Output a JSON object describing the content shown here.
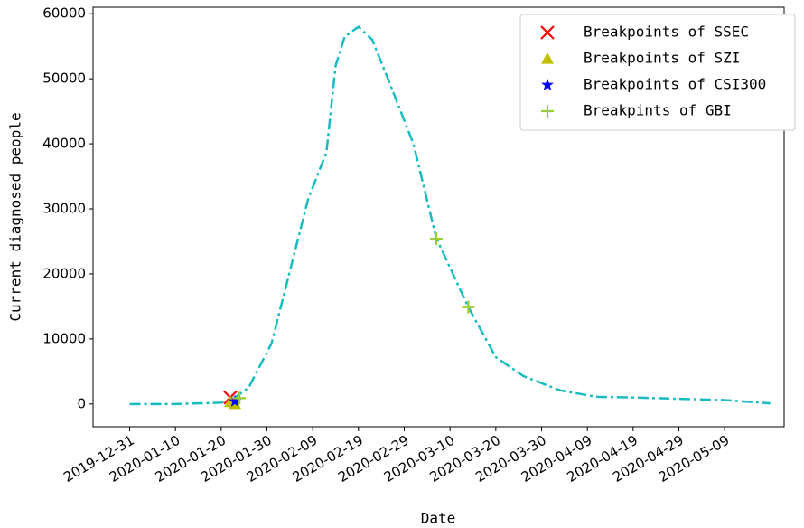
{
  "chart_data": {
    "type": "line",
    "xlabel": "Date",
    "ylabel": "Current diagnosed people",
    "xlim": [
      "2019-12-23",
      "2020-05-22"
    ],
    "xticks": [
      "2019-12-31",
      "2020-01-10",
      "2020-01-20",
      "2020-01-30",
      "2020-02-09",
      "2020-02-19",
      "2020-02-29",
      "2020-03-10",
      "2020-03-20",
      "2020-03-30",
      "2020-04-09",
      "2020-04-19",
      "2020-04-29",
      "2020-05-09"
    ],
    "ylim": [
      -3500,
      61000
    ],
    "yticks": [
      0,
      10000,
      20000,
      30000,
      40000,
      50000,
      60000
    ],
    "legend": "upper right",
    "series": [
      {
        "color": "#17bcc0",
        "marker": "dashdot",
        "x": [
          "2019-12-31",
          "2020-01-10",
          "2020-01-20",
          "2020-01-23",
          "2020-01-26",
          "2020-01-31",
          "2020-02-08",
          "2020-02-12",
          "2020-02-14",
          "2020-02-16",
          "2020-02-19",
          "2020-02-22",
          "2020-02-26",
          "2020-03-02",
          "2020-03-07",
          "2020-03-14",
          "2020-03-20",
          "2020-03-26",
          "2020-04-03",
          "2020-04-11",
          "2020-04-19",
          "2020-04-29",
          "2020-05-09",
          "2020-05-19"
        ],
        "values": [
          0,
          0,
          200,
          1000,
          2500,
          9300,
          31500,
          38700,
          52000,
          56500,
          58000,
          56000,
          49000,
          40000,
          25500,
          14900,
          7200,
          4300,
          2100,
          1100,
          1000,
          800,
          600,
          100
        ]
      },
      {
        "name": "Breakpoints of SSEC",
        "color": "#ff0000",
        "marker": "x",
        "x": [
          "2020-01-22"
        ],
        "values": [
          1000
        ]
      },
      {
        "name": "Breakpoints of SZI",
        "color": "#bfbf00",
        "marker": "^",
        "x": [
          "2020-01-22",
          "2020-01-23"
        ],
        "values": [
          300,
          0
        ]
      },
      {
        "name": "Breakpoints of CSI300",
        "color": "#0000ff",
        "marker": "*",
        "x": [
          "2020-01-23"
        ],
        "values": [
          400
        ]
      },
      {
        "name": "Breakpints of GBI",
        "color": "#9acd32",
        "marker": "+",
        "x": [
          "2020-01-24",
          "2020-03-07",
          "2020-03-14"
        ],
        "values": [
          900,
          25400,
          14900
        ]
      }
    ]
  }
}
